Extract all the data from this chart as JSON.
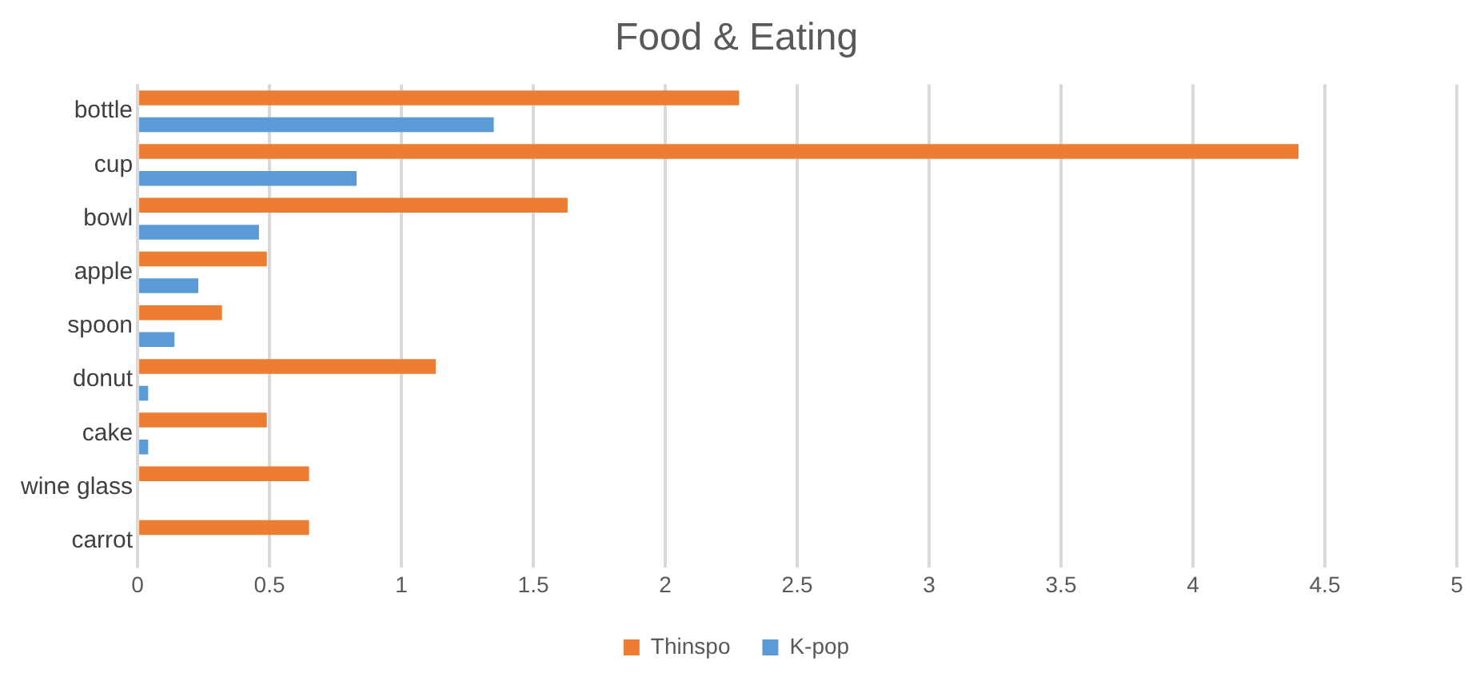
{
  "chart_data": {
    "type": "bar",
    "orientation": "horizontal",
    "title": "Food & Eating",
    "categories": [
      "bottle",
      "cup",
      "bowl",
      "apple",
      "spoon",
      "donut",
      "cake",
      "wine glass",
      "carrot"
    ],
    "series": [
      {
        "name": "Thinspo",
        "color": "#ed7d31",
        "values": [
          2.28,
          4.4,
          1.63,
          0.49,
          0.32,
          1.13,
          0.49,
          0.65,
          0.65
        ]
      },
      {
        "name": "K-pop",
        "color": "#5b9bd5",
        "values": [
          1.35,
          0.83,
          0.46,
          0.23,
          0.14,
          0.04,
          0.04,
          0,
          0
        ]
      }
    ],
    "xlim": [
      0,
      5
    ],
    "xticks": [
      0,
      0.5,
      1,
      1.5,
      2,
      2.5,
      3,
      3.5,
      4,
      4.5,
      5
    ],
    "grid": "x",
    "legend": "bottom"
  }
}
